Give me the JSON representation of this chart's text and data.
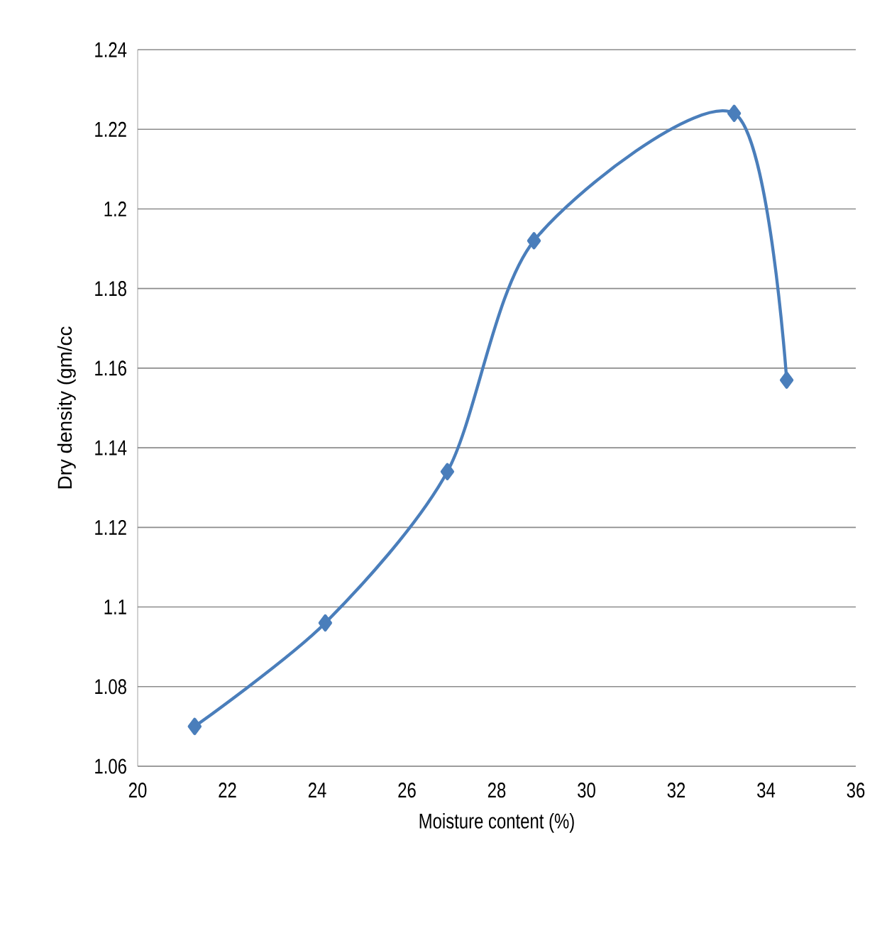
{
  "chart_data": {
    "type": "line",
    "xlabel": "Moisture content (%)",
    "ylabel": "Dry density (gm/cc",
    "x": [
      21.27,
      24.18,
      26.9,
      28.83,
      33.29,
      34.46
    ],
    "series": [
      {
        "color": "#4a7ebb",
        "values": [
          1.07,
          1.096,
          1.134,
          1.192,
          1.224,
          1.157
        ]
      }
    ],
    "xlim": [
      20,
      36
    ],
    "ylim": [
      1.06,
      1.24
    ],
    "xticks": [
      20,
      22,
      24,
      26,
      28,
      30,
      32,
      34,
      36
    ],
    "yticks": [
      1.06,
      1.08,
      1.1,
      1.12,
      1.14,
      1.16,
      1.18,
      1.2,
      1.22,
      1.24
    ],
    "grid": "y",
    "marker": "diamond",
    "line_style": "solid"
  }
}
